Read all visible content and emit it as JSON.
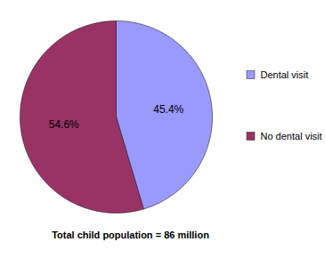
{
  "chart_data": {
    "type": "pie",
    "categories": [
      "Dental visit",
      "No dental visit"
    ],
    "values": [
      45.4,
      54.6
    ],
    "value_labels": [
      "45.4%",
      "54.6%"
    ],
    "colors": [
      "#9999ff",
      "#993366"
    ],
    "data_labels": true,
    "legend": "right",
    "caption": "Total child population = 86 million"
  }
}
